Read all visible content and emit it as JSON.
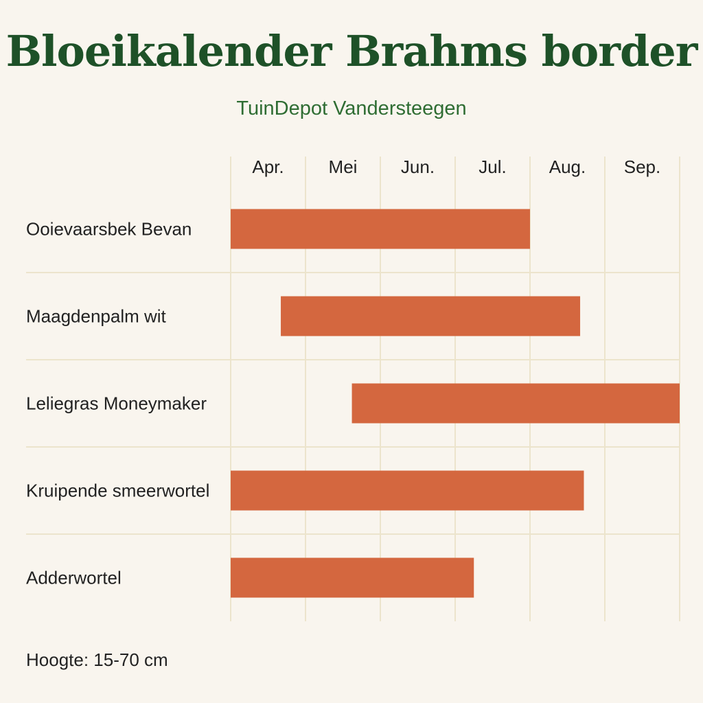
{
  "title": "Bloeikalender Brahms border",
  "subtitle": "TuinDepot Vandersteegen",
  "footnote": "Hoogte: 15-70 cm",
  "colors": {
    "bar": "#d4673f",
    "grid": "#ece4cc",
    "title": "#1e5128",
    "background": "#f9f5ee"
  },
  "chart_data": {
    "type": "bar",
    "orientation": "horizontal-gantt",
    "months": [
      "Apr.",
      "Mei",
      "Jun.",
      "Jul.",
      "Aug.",
      "Sep."
    ],
    "categories": [
      "Ooievaarsbek Bevan",
      "Maagdenpalm wit",
      "Leliegras Moneymaker",
      "Kruipende smeerwortel",
      "Adderwortel"
    ],
    "bars": [
      {
        "label": "Ooievaarsbek Bevan",
        "start": 0.0,
        "end": 4.0
      },
      {
        "label": "Maagdenpalm wit",
        "start": 0.67,
        "end": 4.67
      },
      {
        "label": "Leliegras Moneymaker",
        "start": 1.62,
        "end": 6.0
      },
      {
        "label": "Kruipende smeerwortel",
        "start": 0.0,
        "end": 4.72
      },
      {
        "label": "Adderwortel",
        "start": 0.0,
        "end": 3.25
      }
    ],
    "xlim": [
      0,
      6
    ],
    "grid": true,
    "legend": "none"
  }
}
